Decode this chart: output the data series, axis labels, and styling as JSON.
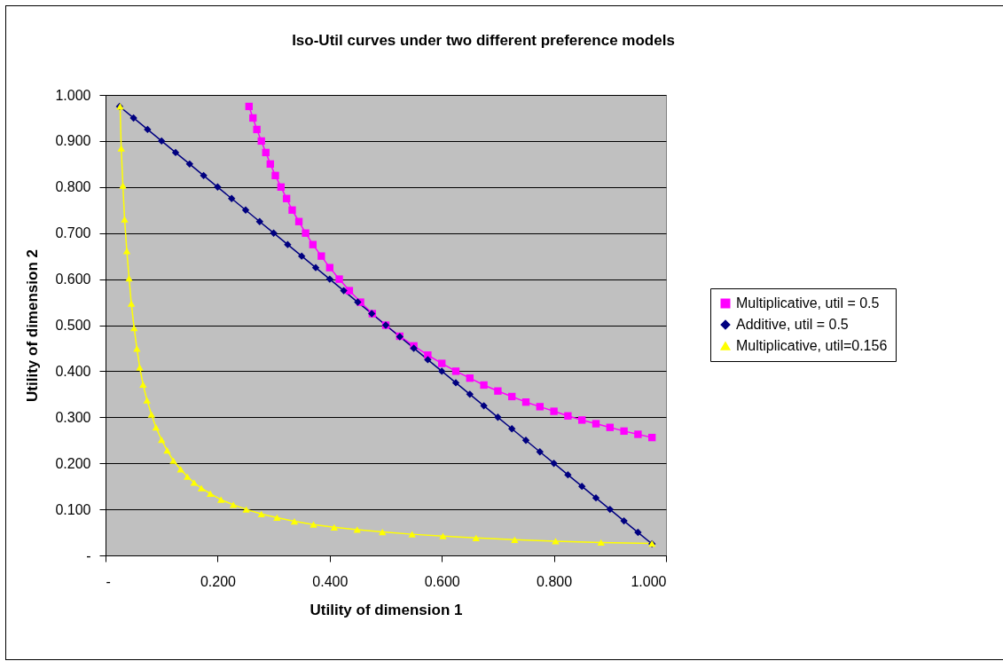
{
  "chart_data": {
    "type": "line",
    "title": "Iso-Util curves under two different preference models",
    "xlabel": "Utility of dimension 1",
    "ylabel": "Utility of dimension 2",
    "xlim": [
      0,
      1
    ],
    "ylim": [
      0,
      1
    ],
    "xticks": [
      {
        "value": 0,
        "label": "-"
      },
      {
        "value": 0.2,
        "label": "0.200"
      },
      {
        "value": 0.4,
        "label": "0.400"
      },
      {
        "value": 0.6,
        "label": "0.600"
      },
      {
        "value": 0.8,
        "label": "0.800"
      },
      {
        "value": 1,
        "label": "1.000"
      }
    ],
    "yticks": [
      {
        "value": 0,
        "label": "-"
      },
      {
        "value": 0.1,
        "label": "0.100"
      },
      {
        "value": 0.2,
        "label": "0.200"
      },
      {
        "value": 0.3,
        "label": "0.300"
      },
      {
        "value": 0.4,
        "label": "0.400"
      },
      {
        "value": 0.5,
        "label": "0.500"
      },
      {
        "value": 0.6,
        "label": "0.600"
      },
      {
        "value": 0.7,
        "label": "0.700"
      },
      {
        "value": 0.8,
        "label": "0.800"
      },
      {
        "value": 0.9,
        "label": "0.900"
      },
      {
        "value": 1,
        "label": "1.000"
      }
    ],
    "grid": "y",
    "legend": "right",
    "line_style": "solid",
    "series": [
      {
        "name": "Multiplicative, util = 0.5",
        "color": "#ff00ff",
        "marker": "square",
        "x": [
          0.256,
          0.263,
          0.27,
          0.278,
          0.286,
          0.294,
          0.303,
          0.313,
          0.323,
          0.333,
          0.345,
          0.357,
          0.37,
          0.385,
          0.4,
          0.417,
          0.435,
          0.455,
          0.476,
          0.5,
          0.525,
          0.55,
          0.575,
          0.6,
          0.625,
          0.65,
          0.675,
          0.7,
          0.725,
          0.75,
          0.775,
          0.8,
          0.825,
          0.85,
          0.875,
          0.9,
          0.925,
          0.95,
          0.975
        ],
        "values": [
          0.975,
          0.95,
          0.925,
          0.9,
          0.875,
          0.85,
          0.825,
          0.8,
          0.775,
          0.75,
          0.725,
          0.7,
          0.675,
          0.65,
          0.625,
          0.6,
          0.575,
          0.55,
          0.525,
          0.5,
          0.476,
          0.455,
          0.435,
          0.417,
          0.4,
          0.385,
          0.37,
          0.357,
          0.345,
          0.333,
          0.323,
          0.313,
          0.303,
          0.294,
          0.286,
          0.278,
          0.27,
          0.263,
          0.256
        ]
      },
      {
        "name": "Additive, util = 0.5",
        "color": "#000080",
        "marker": "diamond",
        "x": [
          0.025,
          0.05,
          0.075,
          0.1,
          0.125,
          0.15,
          0.175,
          0.2,
          0.225,
          0.25,
          0.275,
          0.3,
          0.325,
          0.35,
          0.375,
          0.4,
          0.425,
          0.45,
          0.475,
          0.5,
          0.525,
          0.55,
          0.575,
          0.6,
          0.625,
          0.65,
          0.675,
          0.7,
          0.725,
          0.75,
          0.775,
          0.8,
          0.825,
          0.85,
          0.875,
          0.9,
          0.925,
          0.95,
          0.975
        ],
        "values": [
          0.975,
          0.95,
          0.925,
          0.9,
          0.875,
          0.85,
          0.825,
          0.8,
          0.775,
          0.75,
          0.725,
          0.7,
          0.675,
          0.65,
          0.625,
          0.6,
          0.575,
          0.55,
          0.525,
          0.5,
          0.475,
          0.45,
          0.425,
          0.4,
          0.375,
          0.35,
          0.325,
          0.3,
          0.275,
          0.25,
          0.225,
          0.2,
          0.175,
          0.15,
          0.125,
          0.1,
          0.075,
          0.05,
          0.025
        ]
      },
      {
        "name": "Multiplicative, util=0.156",
        "color": "#ffff00",
        "marker": "triangle",
        "x": [
          0.026,
          0.028,
          0.031,
          0.034,
          0.038,
          0.042,
          0.046,
          0.051,
          0.056,
          0.061,
          0.067,
          0.074,
          0.082,
          0.09,
          0.1,
          0.11,
          0.121,
          0.134,
          0.146,
          0.158,
          0.171,
          0.187,
          0.206,
          0.228,
          0.251,
          0.278,
          0.306,
          0.337,
          0.371,
          0.408,
          0.449,
          0.494,
          0.547,
          0.602,
          0.661,
          0.73,
          0.803,
          0.884,
          0.975
        ],
        "values": [
          0.975,
          0.884,
          0.803,
          0.73,
          0.661,
          0.602,
          0.547,
          0.494,
          0.449,
          0.408,
          0.371,
          0.337,
          0.306,
          0.278,
          0.251,
          0.228,
          0.206,
          0.187,
          0.171,
          0.158,
          0.146,
          0.134,
          0.121,
          0.11,
          0.1,
          0.09,
          0.082,
          0.074,
          0.067,
          0.061,
          0.056,
          0.051,
          0.046,
          0.042,
          0.038,
          0.034,
          0.031,
          0.028,
          0.026
        ]
      }
    ]
  }
}
